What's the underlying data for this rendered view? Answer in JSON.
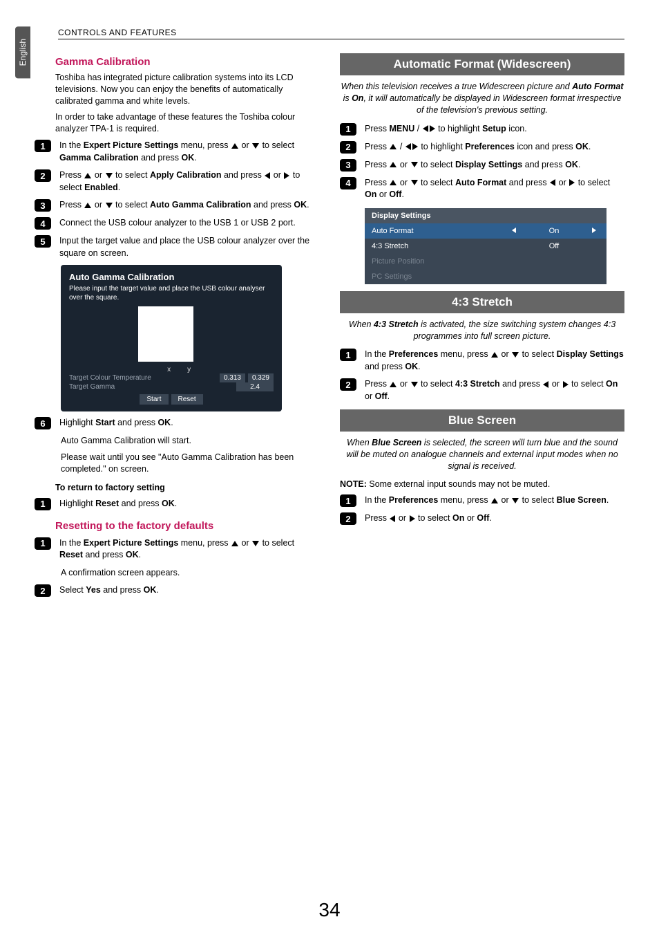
{
  "header": {
    "section": "CONTROLS AND FEATURES"
  },
  "lang_tab": "English",
  "page_number": "34",
  "left": {
    "gamma": {
      "title": "Gamma Calibration",
      "intro1": "Toshiba has integrated picture calibration systems into its LCD televisions. Now you can enjoy the benefits of automatically calibrated gamma and white levels.",
      "intro2": "In order to take advantage of these features the Toshiba colour analyzer TPA-1 is required.",
      "steps": {
        "s1a": "In the ",
        "s1b": "Expert Picture Settings",
        "s1c": " menu, press ",
        "s1d": " or ",
        "s1e": " to select ",
        "s1f": "Gamma Calibration",
        "s1g": " and press ",
        "s1h": "OK",
        "s1i": ".",
        "s2a": "Press ",
        "s2b": " or ",
        "s2c": " to select ",
        "s2d": "Apply Calibration",
        "s2e": " and press ",
        "s2f": " or ",
        "s2g": " to select ",
        "s2h": "Enabled",
        "s2i": ".",
        "s3a": "Press ",
        "s3b": " or ",
        "s3c": " to select ",
        "s3d": "Auto Gamma Calibration",
        "s3e": " and press ",
        "s3f": "OK",
        "s3g": ".",
        "s4": "Connect the USB colour analyzer to the USB 1 or USB 2 port.",
        "s5": "Input the target value and place the USB colour analyzer over the square on screen."
      },
      "osd": {
        "title": "Auto Gamma Calibration",
        "sub": "Please input the target value and place the USB colour analyser over the square.",
        "x": "x",
        "y": "y",
        "tct": "Target Colour Temperature",
        "tg": "Target Gamma",
        "v1": "0.313",
        "v2": "0.329",
        "v3": "2.4",
        "start": "Start",
        "reset": "Reset"
      },
      "s6a": "Highlight ",
      "s6b": "Start",
      "s6c": " and press ",
      "s6d": "OK",
      "s6e": ".",
      "s6_line2": "Auto Gamma Calibration will start.",
      "s6_line3": "Please wait until you see \"Auto Gamma Calibration has been completed.\" on screen.",
      "return_heading": "To return to factory setting",
      "r1a": "Highlight ",
      "r1b": "Reset",
      "r1c": " and press ",
      "r1d": "OK",
      "r1e": "."
    },
    "reset": {
      "title": "Resetting to the factory defaults",
      "s1a": "In the ",
      "s1b": "Expert Picture Settings",
      "s1c": " menu, press ",
      "s1d": " or ",
      "s1e": " to select ",
      "s1f": "Reset",
      "s1g": " and press ",
      "s1h": "OK",
      "s1i": ".",
      "s1_line2": "A confirmation screen appears.",
      "s2a": "Select ",
      "s2b": "Yes",
      "s2c": " and press ",
      "s2d": "OK",
      "s2e": "."
    }
  },
  "right": {
    "auto_format": {
      "title": "Automatic Format (Widescreen)",
      "intro_a": "When this television receives a true Widescreen picture and ",
      "intro_b": "Auto Format",
      "intro_c": " is ",
      "intro_d": "On",
      "intro_e": ", it will automatically be displayed in Widescreen format irrespective of the television's previous setting.",
      "s1a": "Press ",
      "s1b": "MENU",
      "s1c": " / ",
      "s1d": " to highlight ",
      "s1e": "Setup",
      "s1f": " icon.",
      "s2a": "Press ",
      "s2b": " / ",
      "s2c": " to highlight ",
      "s2d": "Preferences",
      "s2e": " icon and press ",
      "s2f": "OK",
      "s2g": ".",
      "s3a": "Press ",
      "s3b": " or ",
      "s3c": " to select ",
      "s3d": "Display Settings",
      "s3e": " and press ",
      "s3f": "OK",
      "s3g": ".",
      "s4a": "Press ",
      "s4b": " or ",
      "s4c": " to select ",
      "s4d": "Auto Format",
      "s4e": " and press ",
      "s4f": " or ",
      "s4g": " to select ",
      "s4h": "On",
      "s4i": " or ",
      "s4j": "Off",
      "s4k": ".",
      "table": {
        "header": "Display Settings",
        "r1": "Auto Format",
        "r1v": "On",
        "r2": "4:3 Stretch",
        "r2v": "Off",
        "r3": "Picture Position",
        "r4": "PC Settings"
      }
    },
    "stretch": {
      "title": "4:3 Stretch",
      "intro_a": "When ",
      "intro_b": "4:3 Stretch",
      "intro_c": " is activated, the size switching system changes 4:3 programmes into full screen picture.",
      "s1a": "In the ",
      "s1b": "Preferences",
      "s1c": " menu, press ",
      "s1d": " or ",
      "s1e": " to select ",
      "s1f": "Display Settings",
      "s1g": " and press ",
      "s1h": "OK",
      "s1i": ".",
      "s2a": "Press ",
      "s2b": " or ",
      "s2c": " to select ",
      "s2d": "4:3 Stretch",
      "s2e": " and press ",
      "s2f": " or ",
      "s2g": " to select ",
      "s2h": "On",
      "s2i": " or ",
      "s2j": "Off",
      "s2k": "."
    },
    "blue": {
      "title": "Blue Screen",
      "intro_a": "When ",
      "intro_b": "Blue Screen",
      "intro_c": " is selected, the screen will turn blue and the sound will be muted on analogue channels and external input modes when no signal is received.",
      "note_a": "NOTE:",
      "note_b": " Some external input sounds may not be muted.",
      "s1a": "In the ",
      "s1b": "Preferences",
      "s1c": " menu, press ",
      "s1d": " or ",
      "s1e": " to select ",
      "s1f": "Blue Screen",
      "s1g": ".",
      "s2a": "Press ",
      "s2b": " or ",
      "s2c": " to select ",
      "s2d": "On",
      "s2e": " or ",
      "s2f": "Off",
      "s2g": "."
    }
  }
}
